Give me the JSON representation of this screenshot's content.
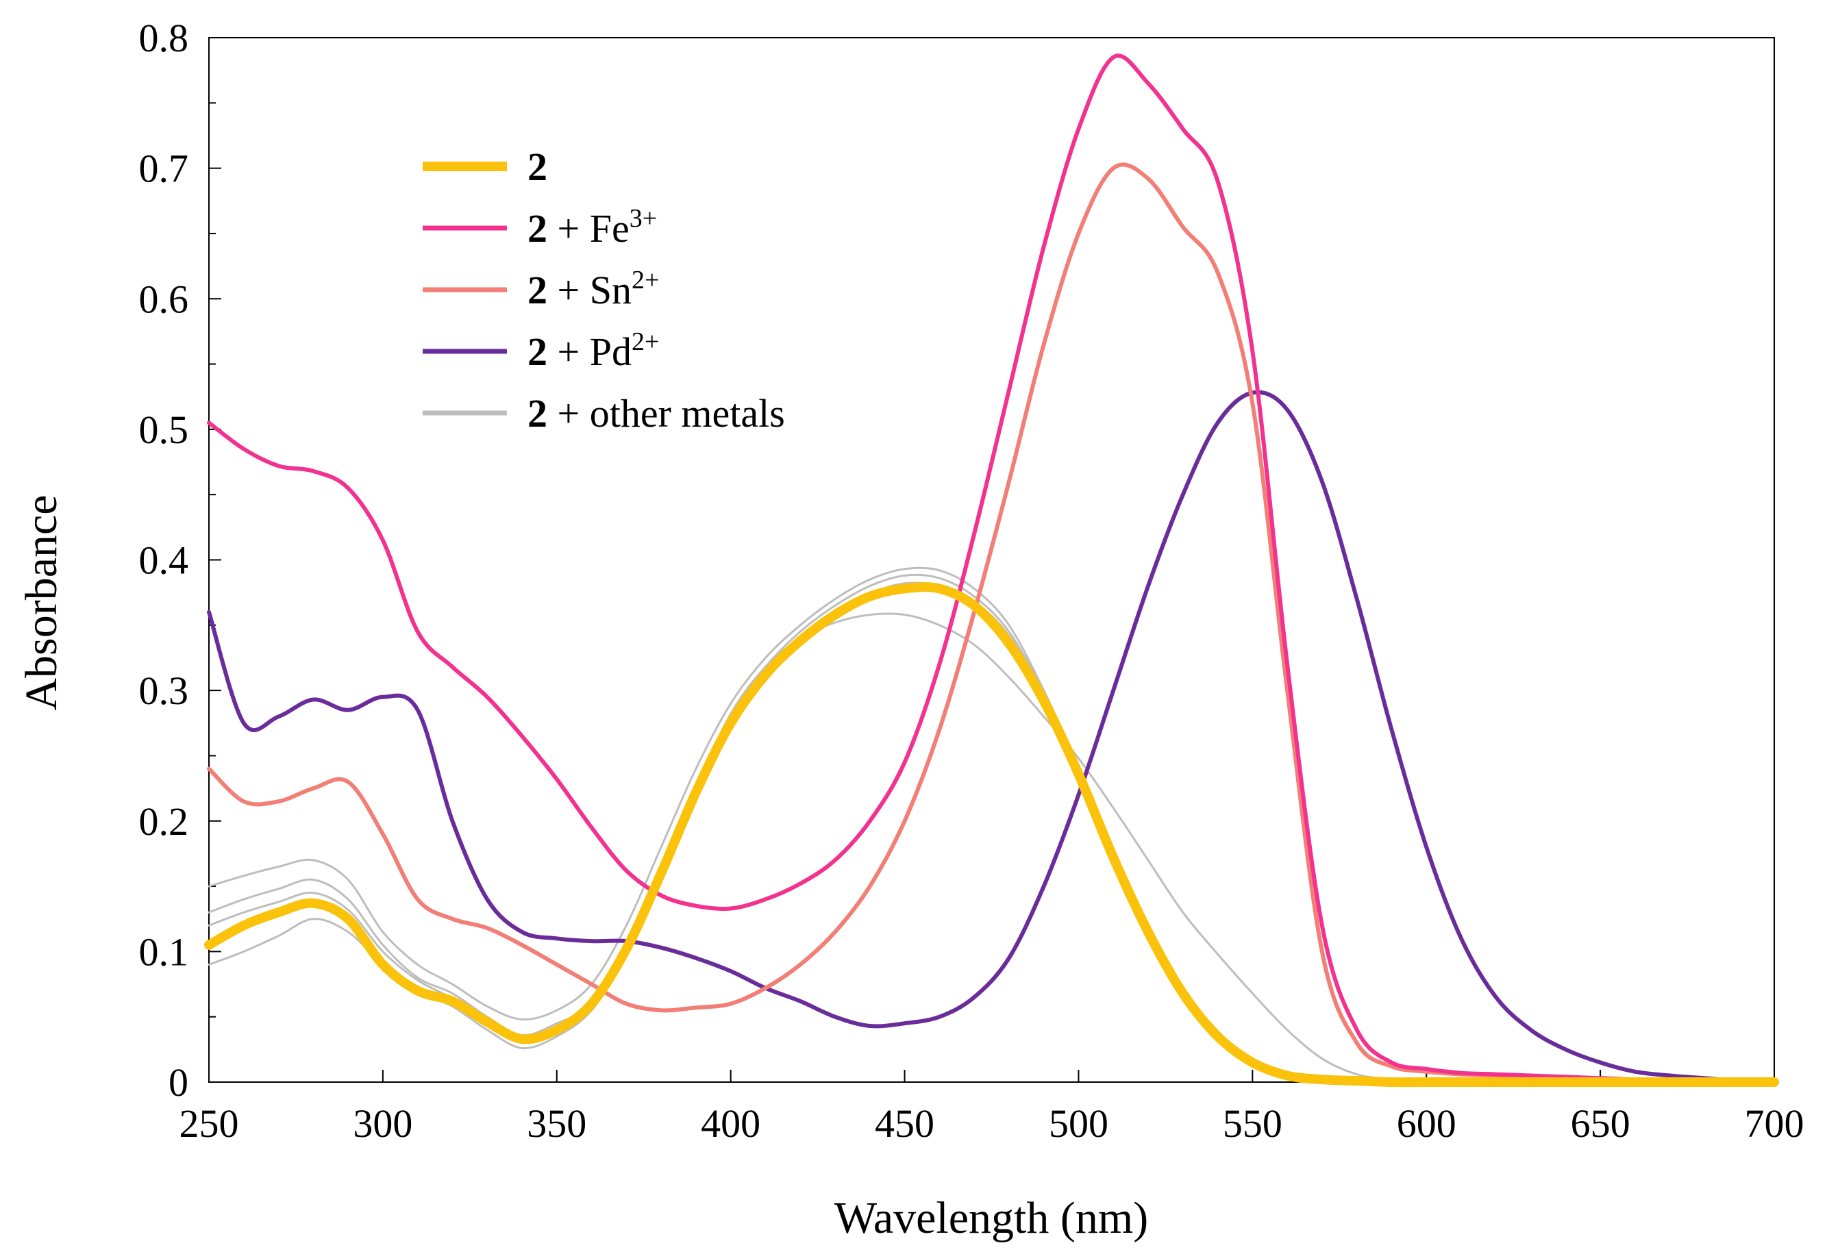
{
  "chart_data": {
    "type": "line",
    "title": "",
    "xlabel": "Wavelength (nm)",
    "ylabel": "Absorbance",
    "xlim": [
      250,
      700
    ],
    "ylim": [
      0,
      0.8
    ],
    "x_ticks": [
      "250",
      "300",
      "350",
      "400",
      "450",
      "500",
      "550",
      "600",
      "650",
      "700"
    ],
    "y_ticks": [
      "0",
      "0.1",
      "0.2",
      "0.3",
      "0.4",
      "0.5",
      "0.6",
      "0.7",
      "0.8"
    ],
    "grid": false,
    "legend_position": "top-left",
    "legend": [
      {
        "bold": "2",
        "text": "",
        "sup": "",
        "color": "#FBC20B"
      },
      {
        "bold": "2",
        "text": " + Fe",
        "sup": "3+",
        "color": "#F2328E"
      },
      {
        "bold": "2",
        "text": " + Sn",
        "sup": "2+",
        "color": "#F27E76"
      },
      {
        "bold": "2",
        "text": " + Pd",
        "sup": "2+",
        "color": "#6A2C9A"
      },
      {
        "bold": "2",
        "text": " + other metals",
        "sup": "",
        "color": "#BDBDBD"
      }
    ],
    "x": [
      250,
      260,
      270,
      280,
      290,
      300,
      310,
      320,
      330,
      340,
      350,
      360,
      370,
      380,
      390,
      400,
      410,
      420,
      430,
      440,
      450,
      460,
      470,
      480,
      490,
      500,
      510,
      520,
      530,
      540,
      550,
      560,
      570,
      580,
      590,
      600,
      610,
      620,
      630,
      640,
      650,
      660,
      670,
      680,
      690,
      700
    ],
    "series": [
      {
        "name": "2 + other metals",
        "color": "#BDBDBD",
        "width": 3,
        "values": [
          0.15,
          0.158,
          0.165,
          0.17,
          0.155,
          0.115,
          0.09,
          0.075,
          0.058,
          0.048,
          0.055,
          0.075,
          0.12,
          0.18,
          0.24,
          0.29,
          0.325,
          0.35,
          0.37,
          0.385,
          0.393,
          0.392,
          0.378,
          0.35,
          0.3,
          0.24,
          0.175,
          0.118,
          0.07,
          0.035,
          0.015,
          0.005,
          0.002,
          0.001,
          0,
          0,
          0,
          0,
          0,
          0,
          0,
          0,
          0,
          0,
          0,
          0
        ]
      },
      {
        "name": "2 + other metals",
        "color": "#BDBDBD",
        "width": 3,
        "values": [
          0.13,
          0.14,
          0.148,
          0.155,
          0.14,
          0.105,
          0.08,
          0.068,
          0.05,
          0.036,
          0.045,
          0.06,
          0.105,
          0.16,
          0.225,
          0.28,
          0.318,
          0.345,
          0.365,
          0.38,
          0.388,
          0.386,
          0.372,
          0.345,
          0.298,
          0.24,
          0.176,
          0.12,
          0.072,
          0.036,
          0.015,
          0.005,
          0.002,
          0.001,
          0,
          0,
          0,
          0,
          0,
          0,
          0,
          0,
          0,
          0,
          0,
          0
        ]
      },
      {
        "name": "2 + other metals",
        "color": "#BDBDBD",
        "width": 3,
        "values": [
          0.12,
          0.13,
          0.138,
          0.145,
          0.132,
          0.1,
          0.078,
          0.064,
          0.046,
          0.03,
          0.04,
          0.058,
          0.1,
          0.158,
          0.222,
          0.276,
          0.314,
          0.34,
          0.36,
          0.374,
          0.382,
          0.38,
          0.368,
          0.342,
          0.296,
          0.238,
          0.175,
          0.12,
          0.072,
          0.036,
          0.015,
          0.005,
          0.002,
          0.001,
          0,
          0,
          0,
          0,
          0,
          0,
          0,
          0,
          0,
          0,
          0,
          0
        ]
      },
      {
        "name": "2 + other metals",
        "color": "#BDBDBD",
        "width": 3,
        "values": [
          0.09,
          0.1,
          0.112,
          0.125,
          0.115,
          0.09,
          0.07,
          0.058,
          0.04,
          0.026,
          0.035,
          0.055,
          0.098,
          0.158,
          0.225,
          0.282,
          0.318,
          0.34,
          0.352,
          0.358,
          0.358,
          0.35,
          0.335,
          0.31,
          0.28,
          0.248,
          0.21,
          0.17,
          0.13,
          0.098,
          0.068,
          0.04,
          0.018,
          0.006,
          0.002,
          0,
          0,
          0,
          0,
          0,
          0,
          0,
          0,
          0,
          0,
          0
        ]
      },
      {
        "name": "2 + Pd2+",
        "color": "#6A2C9A",
        "width": 6,
        "values": [
          0.36,
          0.275,
          0.28,
          0.293,
          0.285,
          0.295,
          0.285,
          0.2,
          0.14,
          0.115,
          0.11,
          0.108,
          0.108,
          0.103,
          0.095,
          0.085,
          0.072,
          0.062,
          0.05,
          0.043,
          0.045,
          0.05,
          0.065,
          0.095,
          0.15,
          0.22,
          0.3,
          0.38,
          0.45,
          0.505,
          0.528,
          0.515,
          0.46,
          0.37,
          0.27,
          0.18,
          0.11,
          0.065,
          0.04,
          0.025,
          0.015,
          0.008,
          0.005,
          0.003,
          0.001,
          0
        ]
      },
      {
        "name": "2 + Sn2+",
        "color": "#F27E76",
        "width": 6,
        "values": [
          0.24,
          0.215,
          0.215,
          0.225,
          0.23,
          0.19,
          0.14,
          0.125,
          0.118,
          0.105,
          0.09,
          0.075,
          0.06,
          0.055,
          0.057,
          0.06,
          0.072,
          0.09,
          0.115,
          0.15,
          0.2,
          0.27,
          0.36,
          0.46,
          0.565,
          0.65,
          0.7,
          0.692,
          0.655,
          0.62,
          0.52,
          0.3,
          0.1,
          0.03,
          0.012,
          0.008,
          0.006,
          0.005,
          0.004,
          0.003,
          0.002,
          0.002,
          0.001,
          0.001,
          0,
          0
        ]
      },
      {
        "name": "2 + Fe3+",
        "color": "#F2328E",
        "width": 6,
        "values": [
          0.505,
          0.485,
          0.472,
          0.468,
          0.455,
          0.415,
          0.345,
          0.318,
          0.295,
          0.265,
          0.232,
          0.195,
          0.162,
          0.143,
          0.135,
          0.133,
          0.14,
          0.152,
          0.17,
          0.2,
          0.245,
          0.32,
          0.42,
          0.53,
          0.64,
          0.73,
          0.785,
          0.765,
          0.73,
          0.69,
          0.56,
          0.32,
          0.12,
          0.04,
          0.015,
          0.01,
          0.007,
          0.006,
          0.005,
          0.004,
          0.003,
          0.002,
          0.002,
          0.001,
          0.001,
          0
        ]
      },
      {
        "name": "2",
        "color": "#FBC20B",
        "width": 14,
        "values": [
          0.105,
          0.12,
          0.13,
          0.137,
          0.125,
          0.09,
          0.07,
          0.062,
          0.046,
          0.033,
          0.04,
          0.06,
          0.102,
          0.16,
          0.222,
          0.275,
          0.312,
          0.338,
          0.358,
          0.372,
          0.378,
          0.378,
          0.365,
          0.336,
          0.292,
          0.236,
          0.172,
          0.115,
          0.068,
          0.035,
          0.015,
          0.005,
          0.002,
          0.001,
          0,
          0,
          0,
          0,
          0,
          0,
          0,
          0,
          0,
          0,
          0,
          0
        ]
      }
    ]
  }
}
